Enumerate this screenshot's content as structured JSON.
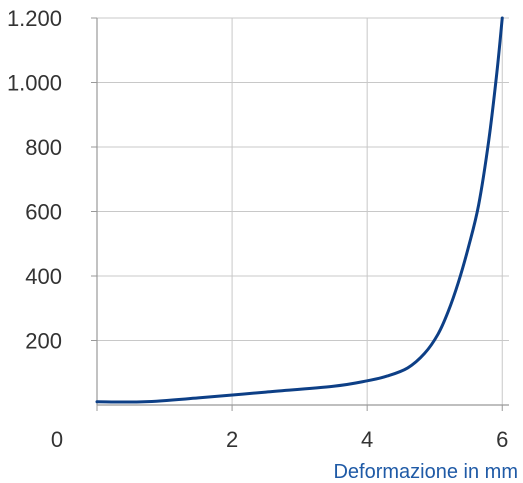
{
  "chart_data": {
    "type": "line",
    "title": "",
    "xlabel": "Deformazione in mm",
    "ylabel": "",
    "xlim": [
      0,
      6.1
    ],
    "ylim": [
      0,
      1200
    ],
    "x_ticks": [
      0,
      2,
      4,
      6
    ],
    "x_tick_labels": [
      "0",
      "2",
      "4",
      "6"
    ],
    "y_ticks": [
      200,
      400,
      600,
      800,
      1000,
      1200
    ],
    "y_tick_labels": [
      "200",
      "400",
      "600",
      "800",
      "1.000",
      "1.200"
    ],
    "grid": true,
    "line_color": "#0d3f86",
    "grid_color": "#c8c8c8",
    "axis_title_color": "#1f5aa6",
    "series": [
      {
        "x": [
          0,
          0.7,
          1.5,
          2.5,
          3.5,
          4.0,
          4.3,
          4.6,
          4.85,
          5.05,
          5.2,
          5.35,
          5.5,
          5.65,
          5.8,
          5.92,
          6.0
        ],
        "y": [
          10,
          10,
          22,
          40,
          58,
          75,
          90,
          115,
          160,
          220,
          290,
          380,
          490,
          620,
          820,
          1030,
          1200
        ]
      }
    ]
  }
}
